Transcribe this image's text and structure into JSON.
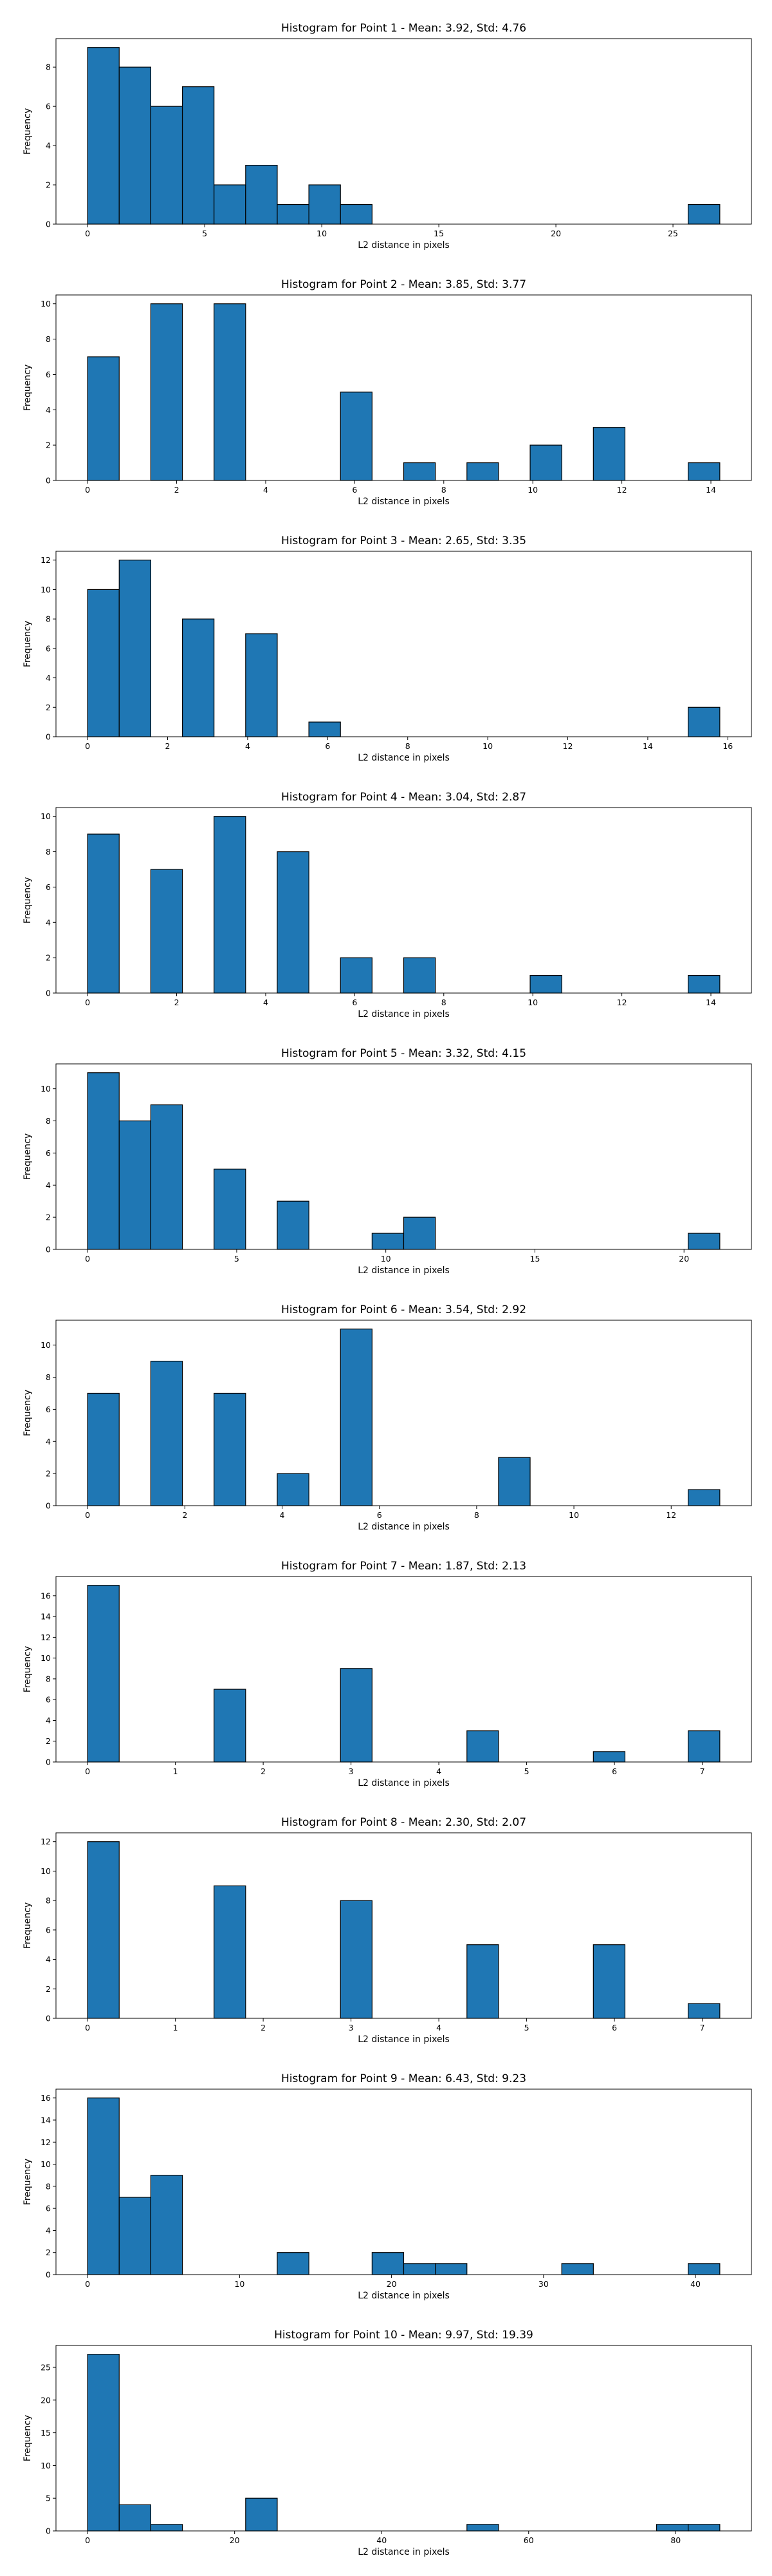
{
  "figure": {
    "bar_color": "#1f77b4",
    "edge_color": "#000000",
    "background": "#ffffff"
  },
  "chart_data": [
    {
      "type": "bar",
      "title": "Histogram for Point 1 - Mean: 3.92, Std: 4.76",
      "xlabel": "L2 distance in pixels",
      "ylabel": "Frequency",
      "bin_width": 1.35,
      "xlim": [
        -1.35,
        28.35
      ],
      "ylim": [
        0,
        9.45
      ],
      "xticks": [
        0,
        5,
        10,
        15,
        20,
        25
      ],
      "yticks": [
        0,
        2,
        4,
        6,
        8
      ],
      "bins": [
        {
          "x": 0,
          "value": 9
        },
        {
          "x": 1.35,
          "value": 8
        },
        {
          "x": 2.7,
          "value": 6
        },
        {
          "x": 4.05,
          "value": 7
        },
        {
          "x": 5.4,
          "value": 2
        },
        {
          "x": 6.75,
          "value": 3
        },
        {
          "x": 8.1,
          "value": 1
        },
        {
          "x": 9.45,
          "value": 2
        },
        {
          "x": 10.8,
          "value": 1
        },
        {
          "x": 25.65,
          "value": 1
        }
      ],
      "grid": false,
      "legend": "none"
    },
    {
      "type": "bar",
      "title": "Histogram for Point 2 - Mean: 3.85, Std: 3.77",
      "xlabel": "L2 distance in pixels",
      "ylabel": "Frequency",
      "bin_width": 0.71,
      "xlim": [
        -0.71,
        14.91
      ],
      "ylim": [
        0,
        10.5
      ],
      "xticks": [
        0,
        2,
        4,
        6,
        8,
        10,
        12,
        14
      ],
      "yticks": [
        0,
        2,
        4,
        6,
        8,
        10
      ],
      "bins": [
        {
          "x": 0,
          "value": 7
        },
        {
          "x": 1.42,
          "value": 10
        },
        {
          "x": 2.84,
          "value": 10
        },
        {
          "x": 5.68,
          "value": 5
        },
        {
          "x": 7.1,
          "value": 1
        },
        {
          "x": 8.52,
          "value": 1
        },
        {
          "x": 9.94,
          "value": 2
        },
        {
          "x": 11.36,
          "value": 3
        },
        {
          "x": 13.49,
          "value": 1
        }
      ],
      "grid": false,
      "legend": "none"
    },
    {
      "type": "bar",
      "title": "Histogram for Point 3 - Mean: 2.65, Std: 3.35",
      "xlabel": "L2 distance in pixels",
      "ylabel": "Frequency",
      "bin_width": 0.79,
      "xlim": [
        -0.79,
        16.59
      ],
      "ylim": [
        0,
        12.6
      ],
      "xticks": [
        0,
        2,
        4,
        6,
        8,
        10,
        12,
        14,
        16
      ],
      "yticks": [
        0,
        2,
        4,
        6,
        8,
        10,
        12
      ],
      "bins": [
        {
          "x": 0,
          "value": 10
        },
        {
          "x": 0.79,
          "value": 12
        },
        {
          "x": 2.37,
          "value": 8
        },
        {
          "x": 3.95,
          "value": 7
        },
        {
          "x": 5.53,
          "value": 1
        },
        {
          "x": 15.01,
          "value": 2
        }
      ],
      "grid": false,
      "legend": "none"
    },
    {
      "type": "bar",
      "title": "Histogram for Point 4 - Mean: 3.04, Std: 2.87",
      "xlabel": "L2 distance in pixels",
      "ylabel": "Frequency",
      "bin_width": 0.71,
      "xlim": [
        -0.71,
        14.91
      ],
      "ylim": [
        0,
        10.5
      ],
      "xticks": [
        0,
        2,
        4,
        6,
        8,
        10,
        12,
        14
      ],
      "yticks": [
        0,
        2,
        4,
        6,
        8,
        10
      ],
      "bins": [
        {
          "x": 0,
          "value": 9
        },
        {
          "x": 1.42,
          "value": 7
        },
        {
          "x": 2.84,
          "value": 10
        },
        {
          "x": 4.26,
          "value": 8
        },
        {
          "x": 5.68,
          "value": 2
        },
        {
          "x": 7.1,
          "value": 2
        },
        {
          "x": 9.94,
          "value": 1
        },
        {
          "x": 13.49,
          "value": 1
        }
      ],
      "grid": false,
      "legend": "none"
    },
    {
      "type": "bar",
      "title": "Histogram for Point 5 - Mean: 3.32, Std: 4.15",
      "xlabel": "L2 distance in pixels",
      "ylabel": "Frequency",
      "bin_width": 1.06,
      "xlim": [
        -1.06,
        22.26
      ],
      "ylim": [
        0,
        11.55
      ],
      "xticks": [
        0,
        5,
        10,
        15,
        20
      ],
      "yticks": [
        0,
        2,
        4,
        6,
        8,
        10
      ],
      "bins": [
        {
          "x": 0,
          "value": 11
        },
        {
          "x": 1.06,
          "value": 8
        },
        {
          "x": 2.12,
          "value": 9
        },
        {
          "x": 4.24,
          "value": 5
        },
        {
          "x": 6.36,
          "value": 3
        },
        {
          "x": 9.54,
          "value": 1
        },
        {
          "x": 10.6,
          "value": 2
        },
        {
          "x": 20.14,
          "value": 1
        }
      ],
      "grid": false,
      "legend": "none"
    },
    {
      "type": "bar",
      "title": "Histogram for Point 6 - Mean: 3.54, Std: 2.92",
      "xlabel": "L2 distance in pixels",
      "ylabel": "Frequency",
      "bin_width": 0.65,
      "xlim": [
        -0.65,
        13.65
      ],
      "ylim": [
        0,
        11.55
      ],
      "xticks": [
        0,
        2,
        4,
        6,
        8,
        10,
        12
      ],
      "yticks": [
        0,
        2,
        4,
        6,
        8,
        10
      ],
      "bins": [
        {
          "x": 0,
          "value": 7
        },
        {
          "x": 1.3,
          "value": 9
        },
        {
          "x": 2.6,
          "value": 7
        },
        {
          "x": 3.9,
          "value": 2
        },
        {
          "x": 5.2,
          "value": 11
        },
        {
          "x": 8.45,
          "value": 3
        },
        {
          "x": 12.35,
          "value": 1
        }
      ],
      "grid": false,
      "legend": "none"
    },
    {
      "type": "bar",
      "title": "Histogram for Point 7 - Mean: 1.87, Std: 2.13",
      "xlabel": "L2 distance in pixels",
      "ylabel": "Frequency",
      "bin_width": 0.36,
      "xlim": [
        -0.36,
        7.56
      ],
      "ylim": [
        0,
        17.85
      ],
      "xticks": [
        0,
        1,
        2,
        3,
        4,
        5,
        6,
        7
      ],
      "yticks": [
        0,
        2,
        4,
        6,
        8,
        10,
        12,
        14,
        16
      ],
      "bins": [
        {
          "x": 0,
          "value": 17
        },
        {
          "x": 1.44,
          "value": 7
        },
        {
          "x": 2.88,
          "value": 9
        },
        {
          "x": 4.32,
          "value": 3
        },
        {
          "x": 5.76,
          "value": 1
        },
        {
          "x": 6.84,
          "value": 3
        }
      ],
      "grid": false,
      "legend": "none"
    },
    {
      "type": "bar",
      "title": "Histogram for Point 8 - Mean: 2.30, Std: 2.07",
      "xlabel": "L2 distance in pixels",
      "ylabel": "Frequency",
      "bin_width": 0.36,
      "xlim": [
        -0.36,
        7.56
      ],
      "ylim": [
        0,
        12.6
      ],
      "xticks": [
        0,
        1,
        2,
        3,
        4,
        5,
        6,
        7
      ],
      "yticks": [
        0,
        2,
        4,
        6,
        8,
        10,
        12
      ],
      "bins": [
        {
          "x": 0,
          "value": 12
        },
        {
          "x": 1.44,
          "value": 9
        },
        {
          "x": 2.88,
          "value": 8
        },
        {
          "x": 4.32,
          "value": 5
        },
        {
          "x": 5.76,
          "value": 5
        },
        {
          "x": 6.84,
          "value": 1
        }
      ],
      "grid": false,
      "legend": "none"
    },
    {
      "type": "bar",
      "title": "Histogram for Point 9 - Mean: 6.43, Std: 9.23",
      "xlabel": "L2 distance in pixels",
      "ylabel": "Frequency",
      "bin_width": 2.08,
      "xlim": [
        -2.08,
        43.68
      ],
      "ylim": [
        0,
        16.8
      ],
      "xticks": [
        0,
        10,
        20,
        30,
        40
      ],
      "yticks": [
        0,
        2,
        4,
        6,
        8,
        10,
        12,
        14,
        16
      ],
      "bins": [
        {
          "x": 0,
          "value": 16
        },
        {
          "x": 2.08,
          "value": 7
        },
        {
          "x": 4.16,
          "value": 9
        },
        {
          "x": 12.48,
          "value": 2
        },
        {
          "x": 18.72,
          "value": 2
        },
        {
          "x": 20.8,
          "value": 1
        },
        {
          "x": 22.88,
          "value": 1
        },
        {
          "x": 31.2,
          "value": 1
        },
        {
          "x": 39.52,
          "value": 1
        }
      ],
      "grid": false,
      "legend": "none"
    },
    {
      "type": "bar",
      "title": "Histogram for Point 10 - Mean: 9.97, Std: 19.39",
      "xlabel": "L2 distance in pixels",
      "ylabel": "Frequency",
      "bin_width": 4.3,
      "xlim": [
        -4.3,
        90.3
      ],
      "ylim": [
        0,
        28.35
      ],
      "xticks": [
        0,
        20,
        40,
        60,
        80
      ],
      "yticks": [
        0,
        5,
        10,
        15,
        20,
        25
      ],
      "bins": [
        {
          "x": 0,
          "value": 27
        },
        {
          "x": 4.3,
          "value": 4
        },
        {
          "x": 8.6,
          "value": 1
        },
        {
          "x": 21.5,
          "value": 5
        },
        {
          "x": 51.6,
          "value": 1
        },
        {
          "x": 77.4,
          "value": 1
        },
        {
          "x": 81.7,
          "value": 1
        }
      ],
      "grid": false,
      "legend": "none"
    }
  ]
}
